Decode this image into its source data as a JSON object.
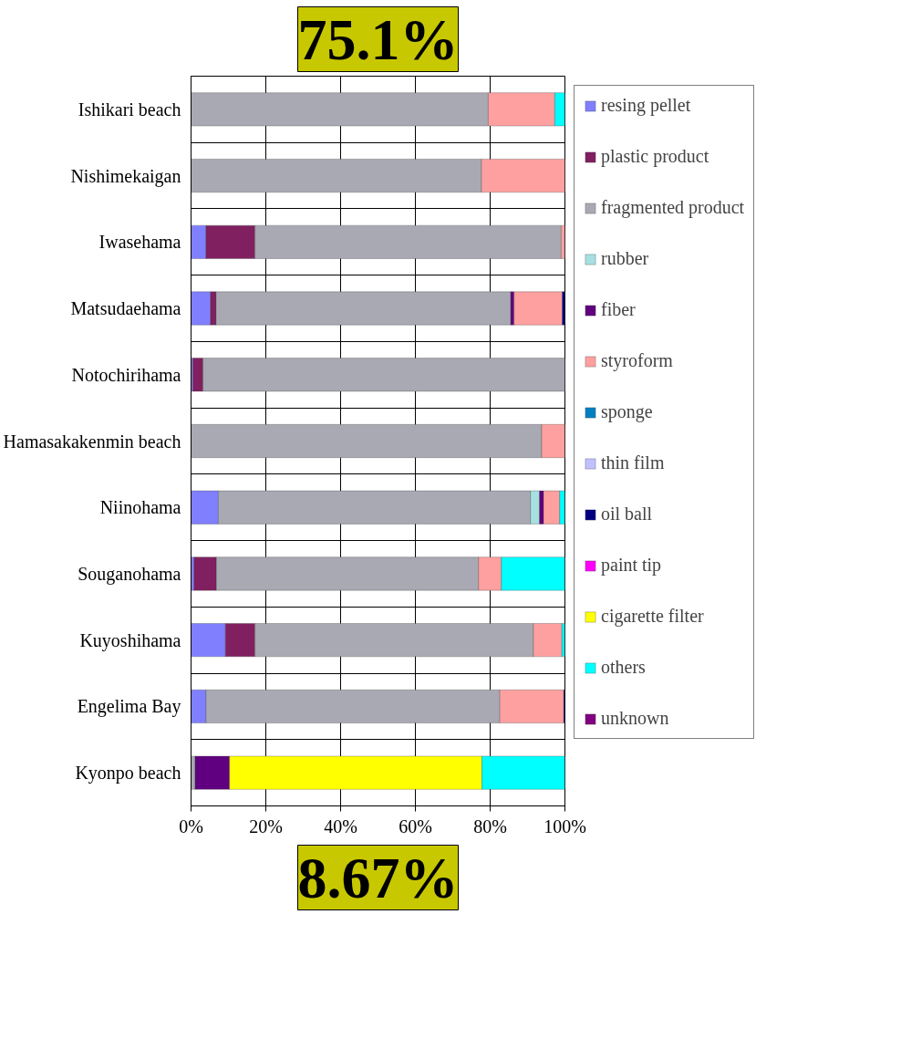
{
  "chart_data": {
    "type": "bar",
    "orientation": "horizontal",
    "stacked": true,
    "categories": [
      "Ishikari beach",
      "Nishimekaigan",
      "Iwasehama",
      "Matsudaehama",
      "Notochirihama",
      "Hamasakakenmin beach",
      "Niinohama",
      "Souganohama",
      "Kuyoshihama",
      "Engelima Bay",
      "Kyonpo beach"
    ],
    "series": [
      {
        "name": "resing pellet",
        "color": "#8080ff",
        "values": [
          null,
          null,
          4.0,
          5.2,
          0.5,
          null,
          7.3,
          0.8,
          9.2,
          4.0,
          null
        ]
      },
      {
        "name": "plastic product",
        "color": "#802060",
        "values": [
          null,
          null,
          13.1,
          1.5,
          2.7,
          null,
          null,
          6.0,
          7.9,
          null,
          null
        ]
      },
      {
        "name": "fragmented product",
        "color": "#a9a9b3",
        "values": [
          79.5,
          77.7,
          81.9,
          78.8,
          96.8,
          93.8,
          83.5,
          70.1,
          74.5,
          78.6,
          1.1
        ]
      },
      {
        "name": "rubber",
        "color": "#a6e0e0",
        "values": [
          null,
          null,
          null,
          null,
          null,
          null,
          2.4,
          null,
          null,
          null,
          null
        ]
      },
      {
        "name": "fiber",
        "color": "#600080",
        "values": [
          null,
          null,
          null,
          0.9,
          null,
          null,
          1.1,
          null,
          null,
          null,
          9.2
        ]
      },
      {
        "name": "styroform",
        "color": "#ffa0a0",
        "values": [
          17.8,
          22.3,
          1.0,
          12.9,
          null,
          6.2,
          4.3,
          6.1,
          7.6,
          17.1,
          null
        ]
      },
      {
        "name": "sponge",
        "color": "#0080c0",
        "values": [
          null,
          null,
          null,
          null,
          null,
          null,
          null,
          null,
          null,
          null,
          null
        ]
      },
      {
        "name": "thin film",
        "color": "#c0c0ff",
        "values": [
          null,
          null,
          null,
          null,
          null,
          null,
          null,
          null,
          null,
          null,
          null
        ]
      },
      {
        "name": "oil ball",
        "color": "#000080",
        "values": [
          null,
          null,
          null,
          0.7,
          null,
          null,
          null,
          null,
          null,
          0.3,
          null
        ]
      },
      {
        "name": "paint tip",
        "color": "#ff00ff",
        "values": [
          null,
          null,
          null,
          null,
          null,
          null,
          null,
          null,
          null,
          null,
          null
        ]
      },
      {
        "name": "cigarette filter",
        "color": "#ffff00",
        "values": [
          null,
          null,
          null,
          null,
          null,
          null,
          null,
          null,
          null,
          null,
          67.5
        ]
      },
      {
        "name": "others",
        "color": "#00ffff",
        "values": [
          2.7,
          null,
          null,
          null,
          null,
          null,
          1.4,
          17.0,
          0.8,
          null,
          22.2
        ]
      },
      {
        "name": "unknown",
        "color": "#800080",
        "values": [
          null,
          null,
          null,
          null,
          null,
          null,
          null,
          null,
          null,
          null,
          null
        ]
      }
    ],
    "xlim": [
      0,
      100
    ],
    "xticks": [
      {
        "value": 0,
        "label": "0%"
      },
      {
        "value": 20,
        "label": "20%"
      },
      {
        "value": 40,
        "label": "40%"
      },
      {
        "value": 60,
        "label": "60%"
      },
      {
        "value": 80,
        "label": "80%"
      },
      {
        "value": 100,
        "label": "100%"
      }
    ],
    "grid": true,
    "legend": "right",
    "annotations": [
      "75.1%",
      "8.67%"
    ]
  }
}
